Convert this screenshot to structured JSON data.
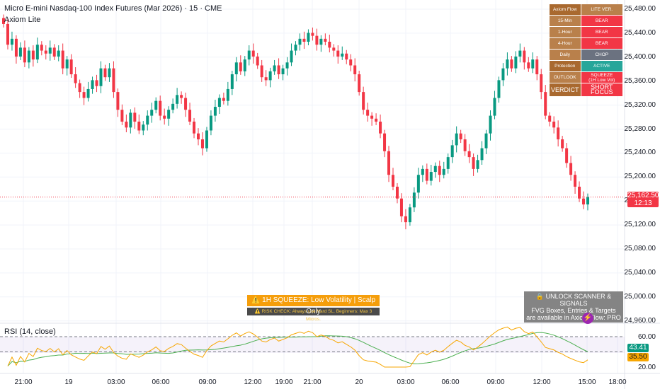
{
  "header": {
    "symbol_title": "Micro E-mini Nasdaq-100 Index Futures (Mar 2026) · 15 · CME",
    "indicator_name": "Axiom Lite"
  },
  "status_table": {
    "rows": [
      {
        "label": "Axiom Flow",
        "value": "LITE VER.",
        "label_color": "#a9692f",
        "value_color": "#b9804b"
      },
      {
        "label": "15-Min",
        "value": "BEAR",
        "label_color": "#b9804b",
        "value_color": "#f23645"
      },
      {
        "label": "1-Hour",
        "value": "BEAR",
        "label_color": "#b9804b",
        "value_color": "#f23645"
      },
      {
        "label": "4-Hour",
        "value": "BEAR",
        "label_color": "#b9804b",
        "value_color": "#f23645"
      },
      {
        "label": "Daily",
        "value": "CHOP",
        "label_color": "#b9804b",
        "value_color": "#6b7280"
      },
      {
        "label": "Protection",
        "value": "ACTIVE",
        "label_color": "#a9692f",
        "value_color": "#26a69a"
      },
      {
        "label": "OUTLOOK",
        "value": "SQUEEZE\n(1H Low Vol)",
        "label_color": "#b9804b",
        "value_color": "#f23645"
      },
      {
        "label": "VERDICT",
        "value": "SHORT FOCUS",
        "label_color": "#a9692f",
        "value_color": "#f23645"
      }
    ]
  },
  "alerts": {
    "main": "⚠️ 1H SQUEEZE: Low Volatility | Scalp Only",
    "sub": "⚠️ RISK CHECK: Always use Hard SL. Beginners: Max 3 Micros."
  },
  "promo": {
    "line1": "🔒 UNLOCK SCANNER & SIGNALS",
    "line2": "FVG Boxes, Entries & Targets",
    "line3": "are available in Axiom Flow: PRO",
    "bolt": "⚡"
  },
  "price_axis": {
    "labels": [
      "25,480.00",
      "25,440.00",
      "25,400.00",
      "25,360.00",
      "25,320.00",
      "25,280.00",
      "25,240.00",
      "25,200.00",
      "25,160.00",
      "25,120.00",
      "25,080.00",
      "25,040.00",
      "25,000.00",
      "24,960.00"
    ],
    "current_price": "25,162.50",
    "countdown": "12:13"
  },
  "time_axis": {
    "labels": [
      "21:00",
      "19",
      "03:00",
      "06:00",
      "09:00",
      "12:00",
      "19:00",
      "21:00",
      "20",
      "03:00",
      "06:00",
      "09:00",
      "12:00",
      "15:00",
      "18:00"
    ]
  },
  "rsi": {
    "label": "RSI (14, close)",
    "levels": [
      "60.00",
      "20.00"
    ],
    "values": [
      "43.41",
      "35.50"
    ]
  },
  "colors": {
    "bull": "#089981",
    "bear": "#f23645",
    "rsi_line": "#f7a600",
    "rsi_ma": "#4caf50",
    "rsi_band": "#7e57c2"
  },
  "chart_data": {
    "type": "candlestick",
    "ylim": [
      24940,
      25500
    ],
    "closes": [
      25455,
      25420,
      25430,
      25400,
      25415,
      25390,
      25410,
      25395,
      25420,
      25410,
      25405,
      25415,
      25400,
      25410,
      25380,
      25395,
      25370,
      25355,
      25340,
      25330,
      25345,
      25360,
      25350,
      25380,
      25365,
      25380,
      25340,
      25310,
      25290,
      25280,
      25305,
      25290,
      25275,
      25285,
      25300,
      25310,
      25325,
      25300,
      25295,
      25310,
      25320,
      25335,
      25330,
      25310,
      25290,
      25270,
      25260,
      25245,
      25275,
      25300,
      25315,
      25330,
      25325,
      25345,
      25370,
      25390,
      25375,
      25395,
      25410,
      25400,
      25385,
      25365,
      25360,
      25375,
      25385,
      25370,
      25380,
      25390,
      25410,
      25420,
      25430,
      25425,
      25440,
      25435,
      25420,
      25430,
      25425,
      25415,
      25410,
      25400,
      25405,
      25395,
      25385,
      25370,
      25340,
      25310,
      25300,
      25295,
      25290,
      25270,
      25240,
      25200,
      25180,
      25160,
      25130,
      25120,
      25145,
      25170,
      25200,
      25210,
      25190,
      25205,
      25215,
      25200,
      25210,
      25230,
      25250,
      25270,
      25260,
      25240,
      25230,
      25210,
      25225,
      25245,
      25270,
      25300,
      25330,
      25360,
      25380,
      25395,
      25380,
      25400,
      25410,
      25390,
      25380,
      25395,
      25370,
      25340,
      25300,
      25290,
      25280,
      25260,
      25245,
      25220,
      25200,
      25180,
      25160,
      25150,
      25162.5
    ]
  }
}
